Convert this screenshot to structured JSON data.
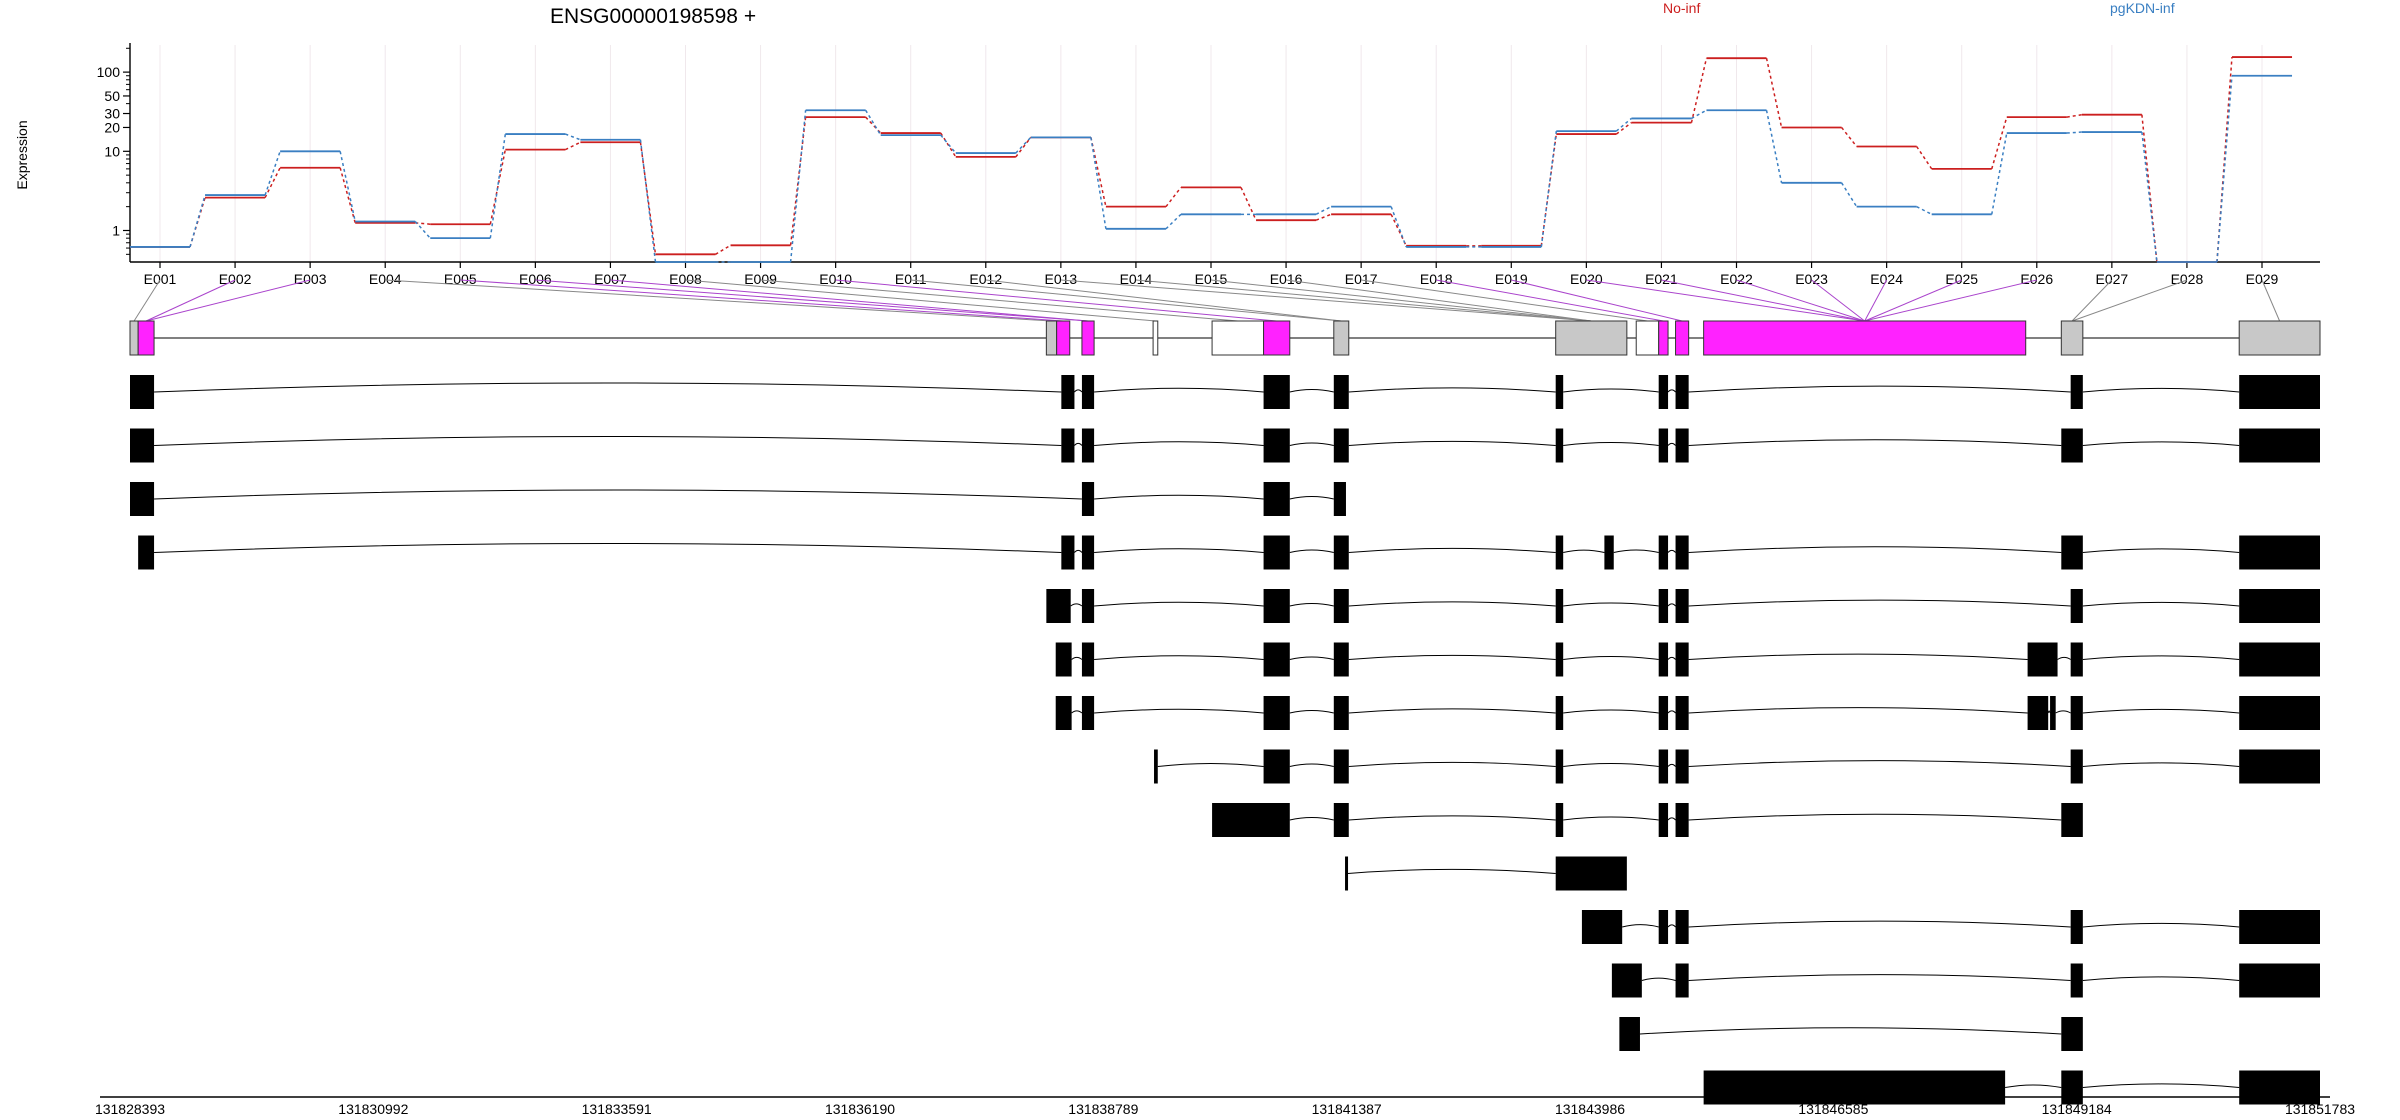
{
  "chart_data": {
    "type": "line",
    "title": "ENSG00000198598 +",
    "ylabel": "Expression",
    "y_scale": "log",
    "ylim": [
      0.4,
      220
    ],
    "y_ticks": [
      "1",
      "10",
      "20",
      "30",
      "50",
      "100"
    ],
    "categories": [
      "E001",
      "E002",
      "E003",
      "E004",
      "E005",
      "E006",
      "E007",
      "E008",
      "E009",
      "E010",
      "E011",
      "E012",
      "E013",
      "E014",
      "E015",
      "E016",
      "E017",
      "E018",
      "E019",
      "E020",
      "E021",
      "E022",
      "E023",
      "E024",
      "E025",
      "E026",
      "E027",
      "E028",
      "E029"
    ],
    "legend_position": "top",
    "series": [
      {
        "name": "No-inf",
        "color": "#cc1f1f",
        "values": [
          0.62,
          2.6,
          6.2,
          1.25,
          1.2,
          10.5,
          13,
          0.5,
          0.65,
          27,
          17,
          8.5,
          15,
          2,
          3.5,
          1.35,
          1.6,
          0.64,
          0.64,
          16.5,
          23,
          150,
          20,
          11.5,
          6,
          27,
          29,
          0.4,
          155
        ]
      },
      {
        "name": "pgKDN-inf",
        "color": "#3a7fc2",
        "values": [
          0.62,
          2.8,
          10,
          1.3,
          0.8,
          16.5,
          14,
          0.4,
          0.4,
          33,
          16,
          9.5,
          15,
          1.05,
          1.6,
          1.6,
          2,
          0.62,
          0.62,
          18,
          26,
          33,
          4,
          2,
          1.6,
          17,
          17.5,
          0.4,
          90
        ]
      }
    ],
    "genome_ticks": [
      "131828393",
      "131830992",
      "131833591",
      "131836190",
      "131838789",
      "131841387",
      "131843986",
      "131846585",
      "131849184",
      "131851783"
    ],
    "genome_range": [
      131828393,
      131851783
    ],
    "colors": {
      "highlight": "#ff22ff",
      "exon_bin": "#c8c8c8",
      "transcript": "#000000",
      "axis": "#000000"
    },
    "bins": [
      {
        "s": 131828393,
        "e": 131828480,
        "hl": false
      },
      {
        "s": 131828480,
        "e": 131828650,
        "hl": true
      },
      {
        "s": 131838180,
        "e": 131838290,
        "hl": false
      },
      {
        "s": 131838290,
        "e": 131838430,
        "hl": true
      },
      {
        "s": 131838560,
        "e": 131838690,
        "hl": true
      },
      {
        "s": 131839320,
        "e": 131839370,
        "hl": false,
        "white": true
      },
      {
        "s": 131839950,
        "e": 131840500,
        "hl": false,
        "white": true
      },
      {
        "s": 131840500,
        "e": 131840780,
        "hl": true
      },
      {
        "s": 131841250,
        "e": 131841410,
        "hl": false
      },
      {
        "s": 131843620,
        "e": 131844380,
        "hl": false
      },
      {
        "s": 131844480,
        "e": 131844720,
        "hl": false,
        "white": true
      },
      {
        "s": 131844720,
        "e": 131844820,
        "hl": true
      },
      {
        "s": 131844900,
        "e": 131845040,
        "hl": true
      },
      {
        "s": 131845200,
        "e": 131848640,
        "hl": true
      },
      {
        "s": 131849020,
        "e": 131849250,
        "hl": false
      },
      {
        "s": 131850920,
        "e": 131851783,
        "hl": false
      }
    ],
    "transcripts": [
      [
        [
          131828393,
          131828650
        ],
        [
          131838340,
          131838480
        ],
        [
          131838560,
          131838690
        ],
        [
          131840500,
          131840780
        ],
        [
          131841250,
          131841410
        ],
        [
          131843620,
          131843700
        ],
        [
          131844720,
          131844820
        ],
        [
          131844900,
          131845040
        ],
        [
          131849120,
          131849250
        ],
        [
          131850920,
          131851783
        ]
      ],
      [
        [
          131828393,
          131828650
        ],
        [
          131838340,
          131838480
        ],
        [
          131838560,
          131838690
        ],
        [
          131840500,
          131840780
        ],
        [
          131841250,
          131841410
        ],
        [
          131843620,
          131843700
        ],
        [
          131844720,
          131844820
        ],
        [
          131844900,
          131845040
        ],
        [
          131849020,
          131849250
        ],
        [
          131850920,
          131851783
        ]
      ],
      [
        [
          131828393,
          131828650
        ],
        [
          131838560,
          131838690
        ],
        [
          131840500,
          131840780
        ],
        [
          131841250,
          131841380
        ]
      ],
      [
        [
          131828480,
          131828650
        ],
        [
          131838340,
          131838480
        ],
        [
          131838560,
          131838690
        ],
        [
          131840500,
          131840780
        ],
        [
          131841250,
          131841410
        ],
        [
          131843620,
          131843700
        ],
        [
          131844140,
          131844240
        ],
        [
          131844720,
          131844820
        ],
        [
          131844900,
          131845040
        ],
        [
          131849020,
          131849250
        ],
        [
          131850920,
          131851783
        ]
      ],
      [
        [
          131838180,
          131838440
        ],
        [
          131838560,
          131838690
        ],
        [
          131840500,
          131840780
        ],
        [
          131841250,
          131841410
        ],
        [
          131843620,
          131843700
        ],
        [
          131844720,
          131844820
        ],
        [
          131844900,
          131845040
        ],
        [
          131849120,
          131849250
        ],
        [
          131850920,
          131851783
        ]
      ],
      [
        [
          131838280,
          131838450
        ],
        [
          131838560,
          131838690
        ],
        [
          131840500,
          131840780
        ],
        [
          131841250,
          131841410
        ],
        [
          131843620,
          131843700
        ],
        [
          131844720,
          131844820
        ],
        [
          131844900,
          131845040
        ],
        [
          131848660,
          131848980
        ],
        [
          131849120,
          131849250
        ],
        [
          131850920,
          131851783
        ]
      ],
      [
        [
          131838280,
          131838450
        ],
        [
          131838560,
          131838690
        ],
        [
          131840500,
          131840780
        ],
        [
          131841250,
          131841410
        ],
        [
          131843620,
          131843700
        ],
        [
          131844720,
          131844820
        ],
        [
          131844900,
          131845040
        ],
        [
          131848660,
          131848880
        ],
        [
          131848900,
          131848960
        ],
        [
          131849120,
          131849250
        ],
        [
          131850920,
          131851783
        ]
      ],
      [
        [
          131839330,
          131839370
        ],
        [
          131840500,
          131840780
        ],
        [
          131841250,
          131841410
        ],
        [
          131843620,
          131843700
        ],
        [
          131844720,
          131844820
        ],
        [
          131844900,
          131845040
        ],
        [
          131849120,
          131849250
        ],
        [
          131850920,
          131851783
        ]
      ],
      [
        [
          131839950,
          131840780
        ],
        [
          131841250,
          131841410
        ],
        [
          131843620,
          131843700
        ],
        [
          131844720,
          131844820
        ],
        [
          131844900,
          131845040
        ],
        [
          131849020,
          131849250
        ]
      ],
      [
        [
          131841370,
          131841400
        ],
        [
          131843620,
          131844380
        ]
      ],
      [
        [
          131843900,
          131844330
        ],
        [
          131844720,
          131844820
        ],
        [
          131844900,
          131845040
        ],
        [
          131849120,
          131849250
        ],
        [
          131850920,
          131851783
        ]
      ],
      [
        [
          131844220,
          131844540
        ],
        [
          131844900,
          131845040
        ],
        [
          131849120,
          131849250
        ],
        [
          131850920,
          131851783
        ]
      ],
      [
        [
          131844300,
          131844520
        ],
        [
          131849020,
          131849250
        ]
      ],
      [
        [
          131845200,
          131848420
        ],
        [
          131849020,
          131849250
        ],
        [
          131850920,
          131851783
        ]
      ]
    ]
  }
}
